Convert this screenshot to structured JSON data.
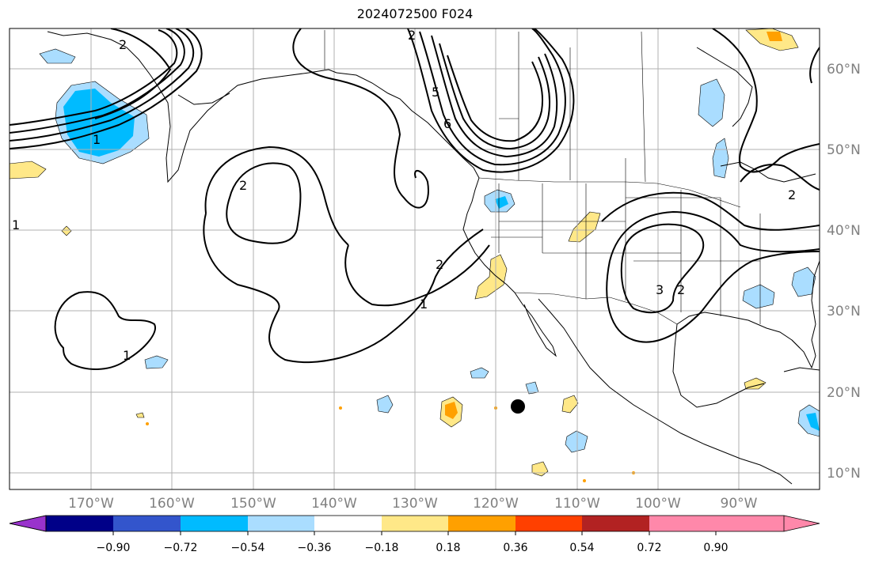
{
  "title": "2024072500 F024",
  "lat_labels": [
    "60°N",
    "50°N",
    "40°N",
    "30°N",
    "20°N",
    "10°N"
  ],
  "lon_labels": [
    "170°W",
    "160°W",
    "150°W",
    "140°W",
    "130°W",
    "120°W",
    "110°W",
    "100°W",
    "90°W"
  ],
  "colorbar": {
    "ticks": [
      "−0.90",
      "−0.72",
      "−0.54",
      "−0.36",
      "−0.18",
      "0.18",
      "0.36",
      "0.54",
      "0.72",
      "0.90"
    ],
    "colors": [
      "#9933cc",
      "#000088",
      "#3355cc",
      "#00bbff",
      "#aaddff",
      "#ffffff",
      "#ffe888",
      "#ffa000",
      "#ff4000",
      "#b22222",
      "#ff88aa"
    ]
  },
  "contour_labels": [
    "2",
    "2",
    "6",
    "5",
    "1",
    "2",
    "1",
    "2",
    "1",
    "3",
    "2",
    "1",
    "2"
  ],
  "colors": {
    "grid": "#b0b0b0",
    "coast": "#000000",
    "neg_light": "#aaddff",
    "neg_mid": "#00bbff",
    "pos_light": "#ffe888",
    "pos_mid": "#ffa000"
  },
  "marker": "storm-center-dot"
}
